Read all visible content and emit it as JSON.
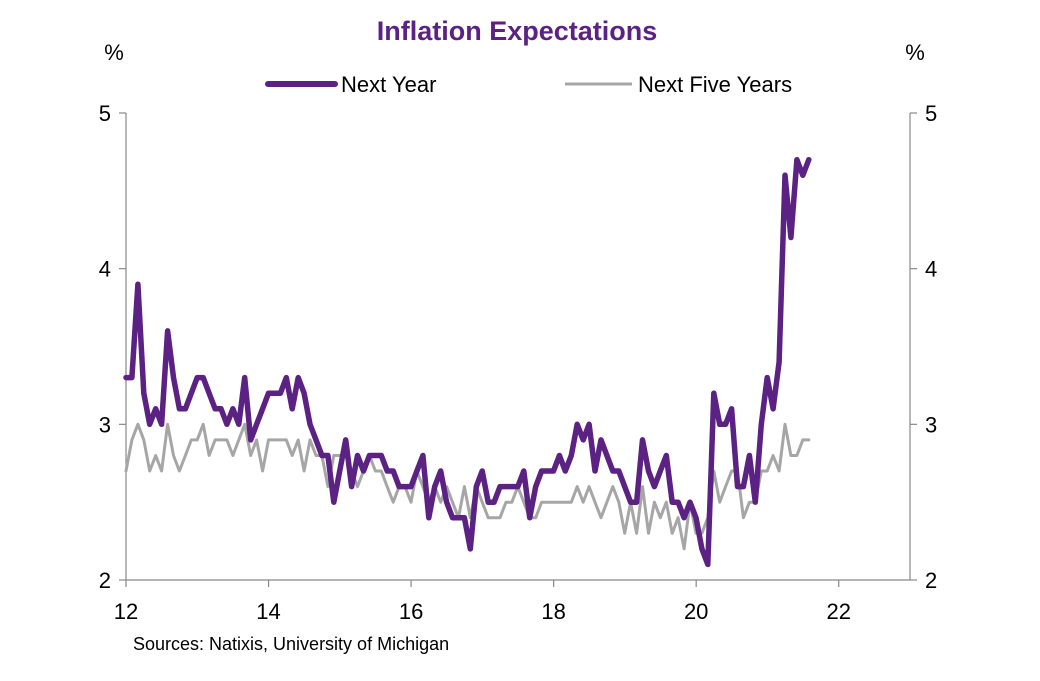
{
  "chart_data": {
    "type": "line",
    "title": "Inflation Expectations",
    "left_unit": "%",
    "right_unit": "%",
    "source": "Sources: Natixis, University of Michigan",
    "xlim": [
      12,
      23
    ],
    "ylim": [
      2,
      5
    ],
    "x_ticks": [
      "12",
      "14",
      "16",
      "18",
      "20",
      "22"
    ],
    "y_ticks": [
      "2",
      "3",
      "4",
      "5"
    ],
    "legend_position": "top",
    "grid": false,
    "colors": {
      "title": "#5b2283",
      "next_year": "#5b2283",
      "next_five_years": "#a6a6a6",
      "axis": "#888888"
    },
    "series": [
      {
        "name": "Next Year",
        "x_start": 12.0,
        "x_step": 0.0833,
        "values": [
          3.3,
          3.3,
          3.9,
          3.2,
          3.0,
          3.1,
          3.0,
          3.6,
          3.3,
          3.1,
          3.1,
          3.2,
          3.3,
          3.3,
          3.2,
          3.1,
          3.1,
          3.0,
          3.1,
          3.0,
          3.3,
          2.9,
          3.0,
          3.1,
          3.2,
          3.2,
          3.2,
          3.3,
          3.1,
          3.3,
          3.2,
          3.0,
          2.9,
          2.8,
          2.8,
          2.5,
          2.7,
          2.9,
          2.6,
          2.8,
          2.7,
          2.8,
          2.8,
          2.8,
          2.7,
          2.7,
          2.6,
          2.6,
          2.6,
          2.7,
          2.8,
          2.4,
          2.6,
          2.7,
          2.5,
          2.4,
          2.4,
          2.4,
          2.2,
          2.6,
          2.7,
          2.5,
          2.5,
          2.6,
          2.6,
          2.6,
          2.6,
          2.7,
          2.4,
          2.6,
          2.7,
          2.7,
          2.7,
          2.8,
          2.7,
          2.8,
          3.0,
          2.9,
          3.0,
          2.7,
          2.9,
          2.8,
          2.7,
          2.7,
          2.6,
          2.5,
          2.5,
          2.9,
          2.7,
          2.6,
          2.7,
          2.8,
          2.5,
          2.5,
          2.4,
          2.5,
          2.4,
          2.2,
          2.1,
          3.2,
          3.0,
          3.0,
          3.1,
          2.6,
          2.6,
          2.8,
          2.5,
          3.0,
          3.3,
          3.1,
          3.4,
          4.6,
          4.2,
          4.7,
          4.6,
          4.7
        ]
      },
      {
        "name": "Next Five Years",
        "x_start": 12.0,
        "x_step": 0.0833,
        "values": [
          2.7,
          2.9,
          3.0,
          2.9,
          2.7,
          2.8,
          2.7,
          3.0,
          2.8,
          2.7,
          2.8,
          2.9,
          2.9,
          3.0,
          2.8,
          2.9,
          2.9,
          2.9,
          2.8,
          2.9,
          3.0,
          2.8,
          2.9,
          2.7,
          2.9,
          2.9,
          2.9,
          2.9,
          2.8,
          2.9,
          2.7,
          2.9,
          2.8,
          2.8,
          2.6,
          2.8,
          2.8,
          2.8,
          2.7,
          2.6,
          2.7,
          2.8,
          2.7,
          2.7,
          2.6,
          2.5,
          2.6,
          2.6,
          2.5,
          2.7,
          2.6,
          2.5,
          2.6,
          2.5,
          2.6,
          2.5,
          2.4,
          2.6,
          2.4,
          2.6,
          2.5,
          2.4,
          2.4,
          2.4,
          2.5,
          2.5,
          2.6,
          2.5,
          2.4,
          2.4,
          2.5,
          2.5,
          2.5,
          2.5,
          2.5,
          2.5,
          2.6,
          2.5,
          2.6,
          2.5,
          2.4,
          2.5,
          2.6,
          2.5,
          2.3,
          2.5,
          2.3,
          2.6,
          2.3,
          2.5,
          2.4,
          2.5,
          2.3,
          2.4,
          2.2,
          2.5,
          2.3,
          2.3,
          2.4,
          2.7,
          2.5,
          2.6,
          2.7,
          2.7,
          2.4,
          2.5,
          2.5,
          2.7,
          2.7,
          2.8,
          2.7,
          3.0,
          2.8,
          2.8,
          2.9,
          2.9
        ]
      }
    ]
  }
}
